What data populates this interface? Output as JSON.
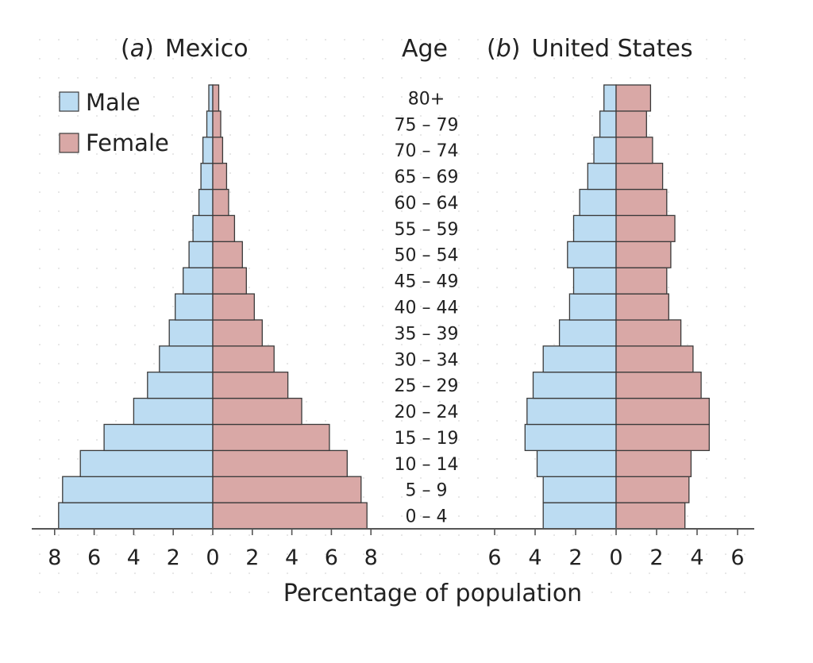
{
  "chart_data": {
    "type": "bar",
    "orientation": "horizontal",
    "subtype": "population-pyramid",
    "age_header": "Age",
    "xlabel": "Percentage of population",
    "categories": [
      "0 – 4",
      "5 – 9",
      "10 – 14",
      "15 – 19",
      "20 – 24",
      "25 – 29",
      "30 – 34",
      "35 – 39",
      "40 – 44",
      "45 – 49",
      "50 – 54",
      "55 – 59",
      "60 – 64",
      "65 – 69",
      "70 – 74",
      "75 – 79",
      "80+"
    ],
    "legend": {
      "placement": "top-left",
      "items": [
        {
          "label": "Male",
          "color": "#bcdcf2"
        },
        {
          "label": "Female",
          "color": "#d9a8a6"
        }
      ]
    },
    "panels": [
      {
        "letter": "a",
        "name": "Mexico",
        "xlim": [
          -8,
          8
        ],
        "ticks": [
          "8",
          "6",
          "4",
          "2",
          "0",
          "2",
          "4",
          "6",
          "8"
        ],
        "series": [
          {
            "name": "Male",
            "values": [
              7.8,
              7.6,
              6.7,
              5.5,
              4.0,
              3.3,
              2.7,
              2.2,
              1.9,
              1.5,
              1.2,
              1.0,
              0.7,
              0.6,
              0.5,
              0.3,
              0.2
            ]
          },
          {
            "name": "Female",
            "values": [
              7.8,
              7.5,
              6.8,
              5.9,
              4.5,
              3.8,
              3.1,
              2.5,
              2.1,
              1.7,
              1.5,
              1.1,
              0.8,
              0.7,
              0.5,
              0.4,
              0.3
            ]
          }
        ]
      },
      {
        "letter": "b",
        "name": "United States",
        "xlim": [
          -6,
          6
        ],
        "ticks": [
          "6",
          "4",
          "2",
          "0",
          "2",
          "4",
          "6"
        ],
        "series": [
          {
            "name": "Male",
            "values": [
              3.6,
              3.6,
              3.9,
              4.5,
              4.4,
              4.1,
              3.6,
              2.8,
              2.3,
              2.1,
              2.4,
              2.1,
              1.8,
              1.4,
              1.1,
              0.8,
              0.6
            ]
          },
          {
            "name": "Female",
            "values": [
              3.4,
              3.6,
              3.7,
              4.6,
              4.6,
              4.2,
              3.8,
              3.2,
              2.6,
              2.5,
              2.7,
              2.9,
              2.5,
              2.3,
              1.8,
              1.5,
              1.7
            ]
          }
        ]
      }
    ]
  }
}
